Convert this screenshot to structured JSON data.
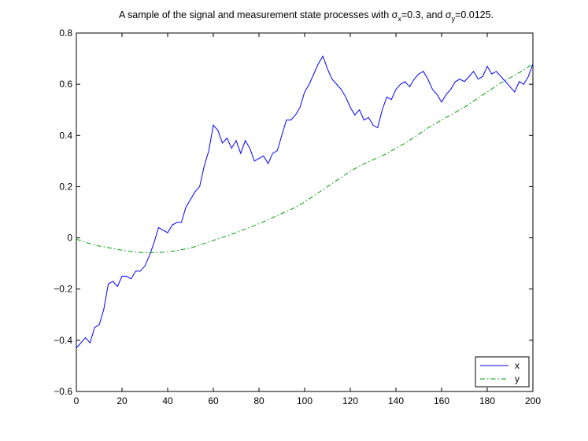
{
  "chart_data": {
    "type": "line",
    "title": {
      "prefix": "A sample of the signal and measurement state processes with ",
      "sigma_x_symbol": "σ",
      "sigma_x_sub": "x",
      "sigma_x_value": "=0.3, and ",
      "sigma_y_symbol": "σ",
      "sigma_y_sub": "y",
      "sigma_y_value": "=0.0125."
    },
    "xlabel": "",
    "ylabel": "",
    "xlim": [
      0,
      200
    ],
    "ylim": [
      -0.6,
      0.8
    ],
    "xticks": [
      0,
      20,
      40,
      60,
      80,
      100,
      120,
      140,
      160,
      180,
      200
    ],
    "yticks": [
      -0.6,
      -0.4,
      -0.2,
      0,
      0.2,
      0.4,
      0.6,
      0.8
    ],
    "xtick_labels": [
      "0",
      "20",
      "40",
      "60",
      "80",
      "100",
      "120",
      "140",
      "160",
      "180",
      "200"
    ],
    "ytick_labels": [
      "−0.6",
      "−0.4",
      "−0.2",
      "0",
      "0.2",
      "0.4",
      "0.6",
      "0.8"
    ],
    "grid": false,
    "legend_position": "bottom-right",
    "series": [
      {
        "name": "x",
        "style": "solid",
        "color": "#0000ff",
        "x": [
          0,
          2,
          4,
          6,
          8,
          10,
          12,
          14,
          16,
          18,
          20,
          22,
          24,
          26,
          28,
          30,
          32,
          34,
          36,
          38,
          40,
          42,
          44,
          46,
          48,
          50,
          52,
          54,
          56,
          58,
          60,
          62,
          64,
          66,
          68,
          70,
          72,
          74,
          76,
          78,
          80,
          82,
          84,
          86,
          88,
          90,
          92,
          94,
          96,
          98,
          100,
          102,
          104,
          106,
          108,
          110,
          112,
          114,
          116,
          118,
          120,
          122,
          124,
          126,
          128,
          130,
          132,
          134,
          136,
          138,
          140,
          142,
          144,
          146,
          148,
          150,
          152,
          154,
          156,
          158,
          160,
          162,
          164,
          166,
          168,
          170,
          172,
          174,
          176,
          178,
          180,
          182,
          184,
          186,
          188,
          190,
          192,
          194,
          196,
          198,
          200
        ],
        "values": [
          -0.43,
          -0.41,
          -0.39,
          -0.41,
          -0.35,
          -0.34,
          -0.28,
          -0.18,
          -0.17,
          -0.19,
          -0.15,
          -0.15,
          -0.16,
          -0.13,
          -0.13,
          -0.11,
          -0.07,
          -0.02,
          0.04,
          0.03,
          0.02,
          0.05,
          0.06,
          0.06,
          0.12,
          0.15,
          0.18,
          0.2,
          0.28,
          0.34,
          0.44,
          0.42,
          0.37,
          0.39,
          0.35,
          0.38,
          0.33,
          0.38,
          0.35,
          0.3,
          0.31,
          0.32,
          0.29,
          0.33,
          0.34,
          0.4,
          0.46,
          0.46,
          0.48,
          0.51,
          0.57,
          0.6,
          0.64,
          0.68,
          0.71,
          0.66,
          0.62,
          0.6,
          0.58,
          0.55,
          0.51,
          0.48,
          0.5,
          0.46,
          0.47,
          0.44,
          0.43,
          0.5,
          0.55,
          0.54,
          0.58,
          0.6,
          0.61,
          0.59,
          0.62,
          0.64,
          0.65,
          0.62,
          0.58,
          0.56,
          0.53,
          0.56,
          0.58,
          0.61,
          0.62,
          0.61,
          0.63,
          0.65,
          0.62,
          0.63,
          0.67,
          0.64,
          0.65,
          0.63,
          0.61,
          0.59,
          0.57,
          0.61,
          0.6,
          0.63,
          0.68
        ]
      },
      {
        "name": "y",
        "style": "dashdot",
        "color": "#00a000",
        "x": [
          0,
          5,
          10,
          15,
          20,
          25,
          30,
          35,
          40,
          45,
          50,
          55,
          60,
          65,
          70,
          75,
          80,
          85,
          90,
          95,
          100,
          105,
          110,
          115,
          120,
          125,
          130,
          135,
          140,
          145,
          150,
          155,
          160,
          165,
          170,
          175,
          180,
          185,
          190,
          195,
          200
        ],
        "values": [
          -0.005,
          -0.02,
          -0.032,
          -0.04,
          -0.048,
          -0.055,
          -0.058,
          -0.058,
          -0.055,
          -0.048,
          -0.04,
          -0.025,
          -0.01,
          0.005,
          0.02,
          0.038,
          0.055,
          0.075,
          0.095,
          0.115,
          0.14,
          0.17,
          0.2,
          0.23,
          0.26,
          0.285,
          0.305,
          0.325,
          0.35,
          0.375,
          0.405,
          0.435,
          0.46,
          0.485,
          0.51,
          0.54,
          0.57,
          0.6,
          0.625,
          0.65,
          0.68
        ]
      }
    ]
  }
}
